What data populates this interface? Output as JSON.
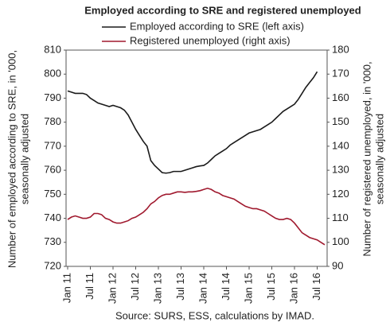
{
  "chart_data": {
    "type": "line",
    "title": "Employed according to SRE and registered unemployed",
    "source": "Source: SURS, ESS, calculations by IMAD.",
    "ylabel": [
      "Number of employed according to SRE, in '000,",
      "seasonally adjusted"
    ],
    "y2label": [
      "Number of registered unemployed, in '000,",
      "seasonally adjusted"
    ],
    "categories": [
      "Jan 11",
      null,
      null,
      null,
      null,
      null,
      "Jul 11",
      null,
      null,
      null,
      null,
      null,
      "Jan 12",
      null,
      null,
      null,
      null,
      null,
      "Jul 12",
      null,
      null,
      null,
      null,
      null,
      "Jan 13",
      null,
      null,
      null,
      null,
      null,
      "Jul 13",
      null,
      null,
      null,
      null,
      null,
      "Jan 14",
      null,
      null,
      null,
      null,
      null,
      "Jul 14",
      null,
      null,
      null,
      null,
      null,
      "Jan 15",
      null,
      null,
      null,
      null,
      null,
      "Jul 15",
      null,
      null,
      null,
      null,
      null,
      "Jan 16",
      null,
      null,
      null,
      null,
      null,
      "Jul 16",
      null,
      null
    ],
    "series": [
      {
        "name": "Employed according to SRE (left axis)",
        "color": "#1a1a1a",
        "axis": "y",
        "values": [
          793,
          792.5,
          792,
          792,
          792,
          791.5,
          790,
          789,
          788,
          787.5,
          787,
          786.5,
          787,
          786.5,
          786,
          785,
          783,
          780,
          777,
          774.5,
          772,
          770,
          764,
          762,
          760.5,
          759,
          758.8,
          759,
          759.5,
          759.5,
          759.5,
          760,
          760.5,
          761,
          761.5,
          761.8,
          762,
          763,
          764.5,
          766,
          767,
          768,
          769,
          770.5,
          771.5,
          772.5,
          773.5,
          774.5,
          775.5,
          776,
          776.5,
          777,
          778,
          779,
          780,
          781.5,
          783,
          784.5,
          785.5,
          786.5,
          787.5,
          789.5,
          792,
          794.5,
          796.5,
          798.5,
          801,
          null,
          null
        ]
      },
      {
        "name": "Registered unemployed (right axis)",
        "color": "#a0192e",
        "axis": "y2",
        "values": [
          109.5,
          110.5,
          111,
          110.5,
          110,
          110,
          110.5,
          112,
          112,
          111.5,
          110,
          109.5,
          108.5,
          108,
          108,
          108.5,
          109,
          110,
          110.5,
          111.5,
          112.5,
          114,
          116,
          117,
          118.5,
          119.5,
          120,
          120,
          120.5,
          121,
          121,
          120.8,
          121,
          121,
          121.2,
          121.5,
          122,
          122.5,
          122,
          121,
          120.5,
          119.5,
          119,
          118.5,
          118,
          117,
          116,
          115,
          114.5,
          114,
          114,
          113.5,
          113,
          112,
          111,
          110,
          109.5,
          109.5,
          110,
          109.5,
          108,
          106,
          104,
          103,
          102,
          101.5,
          101,
          100,
          99
        ]
      }
    ],
    "ylim": [
      720,
      810
    ],
    "yticks": [
      720,
      730,
      740,
      750,
      760,
      770,
      780,
      790,
      800,
      810
    ],
    "y2lim": [
      90,
      180
    ],
    "y2ticks": [
      90,
      100,
      110,
      120,
      130,
      140,
      150,
      160,
      170,
      180
    ],
    "grid": false
  }
}
